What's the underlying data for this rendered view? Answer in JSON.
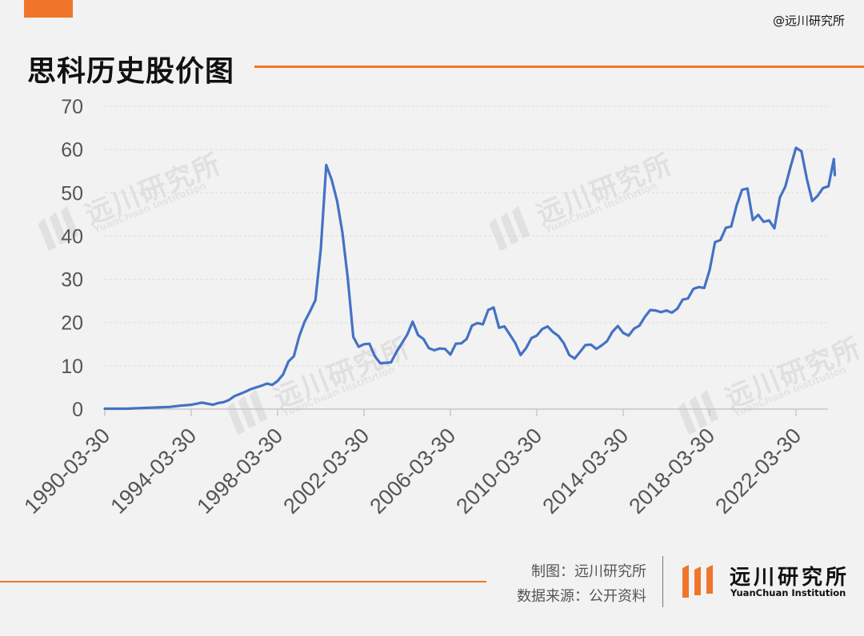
{
  "header": {
    "handle": "@远川研究所",
    "title": "思科历史股价图"
  },
  "footer": {
    "credit_chart": "制图：远川研究所",
    "credit_source": "数据来源：公开资料"
  },
  "brand": {
    "name_cn": "远川研究所",
    "name_en": "YuanChuan Institution"
  },
  "watermark": {
    "text_cn": "远川研究所",
    "text_en": "YuanChuan Institution"
  },
  "colors": {
    "accent": "#f0752a",
    "line": "#4472c4",
    "grid": "#dcdcdc",
    "axis_text": "#555555",
    "background": "#f2f2f2"
  },
  "chart_data": {
    "type": "line",
    "title": "思科历史股价图",
    "xlabel": "",
    "ylabel": "",
    "ylim": [
      0,
      70
    ],
    "yticks": [
      0,
      10,
      20,
      30,
      40,
      50,
      60,
      70
    ],
    "grid": true,
    "xticks": [
      "1990-03-30",
      "1994-03-30",
      "1998-03-30",
      "2002-03-30",
      "2006-03-30",
      "2010-03-30",
      "2014-03-30",
      "2018-03-30",
      "2022-03-30"
    ],
    "series": [
      {
        "points": [
          [
            "1990-03-30",
            0.1
          ],
          [
            "1991-03-30",
            0.1
          ],
          [
            "1992-03-30",
            0.3
          ],
          [
            "1993-03-30",
            0.5
          ],
          [
            "1993-09-30",
            0.8
          ],
          [
            "1994-03-30",
            1.0
          ],
          [
            "1994-09-30",
            1.5
          ],
          [
            "1995-03-30",
            1.0
          ],
          [
            "1995-06-30",
            1.4
          ],
          [
            "1995-09-30",
            1.6
          ],
          [
            "1995-12-30",
            2.1
          ],
          [
            "1996-03-30",
            3.0
          ],
          [
            "1996-06-30",
            3.5
          ],
          [
            "1996-09-30",
            4.0
          ],
          [
            "1996-12-30",
            4.6
          ],
          [
            "1997-03-30",
            5.0
          ],
          [
            "1997-06-30",
            5.4
          ],
          [
            "1997-09-30",
            5.9
          ],
          [
            "1997-12-30",
            5.6
          ],
          [
            "1998-03-30",
            6.5
          ],
          [
            "1998-06-30",
            8.0
          ],
          [
            "1998-09-30",
            11.0
          ],
          [
            "1998-12-30",
            12.2
          ],
          [
            "1999-03-30",
            16.8
          ],
          [
            "1999-06-30",
            20.2
          ],
          [
            "1999-09-30",
            22.6
          ],
          [
            "1999-12-30",
            25.2
          ],
          [
            "2000-03-30",
            37.0
          ],
          [
            "2000-06-30",
            56.4
          ],
          [
            "2000-09-30",
            53.0
          ],
          [
            "2000-12-30",
            48.1
          ],
          [
            "2001-03-30",
            40.8
          ],
          [
            "2001-06-30",
            30.1
          ],
          [
            "2001-09-30",
            16.7
          ],
          [
            "2001-12-30",
            14.4
          ],
          [
            "2002-03-30",
            15.0
          ],
          [
            "2002-06-30",
            15.1
          ],
          [
            "2002-09-30",
            12.2
          ],
          [
            "2002-12-30",
            10.6
          ],
          [
            "2003-03-30",
            10.7
          ],
          [
            "2003-06-30",
            10.8
          ],
          [
            "2003-09-30",
            13.2
          ],
          [
            "2003-12-30",
            15.2
          ],
          [
            "2004-03-30",
            17.2
          ],
          [
            "2004-06-30",
            20.2
          ],
          [
            "2004-09-30",
            17.1
          ],
          [
            "2004-12-30",
            16.2
          ],
          [
            "2005-03-30",
            14.1
          ],
          [
            "2005-06-30",
            13.6
          ],
          [
            "2005-09-30",
            14.0
          ],
          [
            "2005-12-30",
            13.9
          ],
          [
            "2006-03-30",
            12.6
          ],
          [
            "2006-06-30",
            15.1
          ],
          [
            "2006-09-30",
            15.2
          ],
          [
            "2006-12-30",
            16.2
          ],
          [
            "2007-03-30",
            19.3
          ],
          [
            "2007-06-30",
            19.9
          ],
          [
            "2007-09-30",
            19.6
          ],
          [
            "2007-12-30",
            22.9
          ],
          [
            "2008-03-30",
            23.5
          ],
          [
            "2008-06-30",
            18.8
          ],
          [
            "2008-09-30",
            19.1
          ],
          [
            "2008-12-30",
            17.2
          ],
          [
            "2009-03-30",
            15.3
          ],
          [
            "2009-06-30",
            12.5
          ],
          [
            "2009-09-30",
            14.1
          ],
          [
            "2009-12-30",
            16.4
          ],
          [
            "2010-03-30",
            17.0
          ],
          [
            "2010-06-30",
            18.5
          ],
          [
            "2010-09-30",
            19.1
          ],
          [
            "2010-12-30",
            17.8
          ],
          [
            "2011-03-30",
            16.9
          ],
          [
            "2011-06-30",
            15.2
          ],
          [
            "2011-09-30",
            12.5
          ],
          [
            "2011-12-30",
            11.7
          ],
          [
            "2012-03-30",
            13.2
          ],
          [
            "2012-06-30",
            14.8
          ],
          [
            "2012-09-30",
            14.9
          ],
          [
            "2012-12-30",
            13.9
          ],
          [
            "2013-03-30",
            14.7
          ],
          [
            "2013-06-30",
            15.7
          ],
          [
            "2013-09-30",
            17.9
          ],
          [
            "2013-12-30",
            19.2
          ],
          [
            "2014-03-30",
            17.6
          ],
          [
            "2014-06-30",
            17.0
          ],
          [
            "2014-09-30",
            18.6
          ],
          [
            "2014-12-30",
            19.3
          ],
          [
            "2015-03-30",
            21.3
          ],
          [
            "2015-06-30",
            22.9
          ],
          [
            "2015-09-30",
            22.8
          ],
          [
            "2015-12-30",
            22.4
          ],
          [
            "2016-03-30",
            22.8
          ],
          [
            "2016-06-30",
            22.3
          ],
          [
            "2016-09-30",
            23.2
          ],
          [
            "2016-12-30",
            25.3
          ],
          [
            "2017-03-30",
            25.6
          ],
          [
            "2017-06-30",
            27.8
          ],
          [
            "2017-09-30",
            28.2
          ],
          [
            "2017-12-30",
            28.0
          ],
          [
            "2018-03-30",
            32.1
          ],
          [
            "2018-06-30",
            38.6
          ],
          [
            "2018-09-30",
            39.1
          ],
          [
            "2018-12-30",
            41.9
          ],
          [
            "2019-03-30",
            42.2
          ],
          [
            "2019-06-30",
            47.1
          ],
          [
            "2019-09-30",
            50.7
          ],
          [
            "2019-12-30",
            51.0
          ],
          [
            "2020-03-30",
            43.7
          ],
          [
            "2020-06-30",
            44.9
          ],
          [
            "2020-09-30",
            43.3
          ],
          [
            "2020-12-30",
            43.6
          ],
          [
            "2021-03-30",
            41.8
          ],
          [
            "2021-06-30",
            48.9
          ],
          [
            "2021-09-30",
            51.4
          ],
          [
            "2021-12-30",
            56.1
          ],
          [
            "2022-03-30",
            60.4
          ],
          [
            "2022-06-30",
            59.6
          ],
          [
            "2022-09-30",
            53.2
          ],
          [
            "2022-12-30",
            48.1
          ],
          [
            "2023-03-30",
            49.3
          ],
          [
            "2023-06-30",
            51.1
          ],
          [
            "2023-09-30",
            51.5
          ],
          [
            "2023-12-30",
            57.8
          ],
          [
            "2024-01-15",
            54.1
          ]
        ]
      }
    ]
  }
}
